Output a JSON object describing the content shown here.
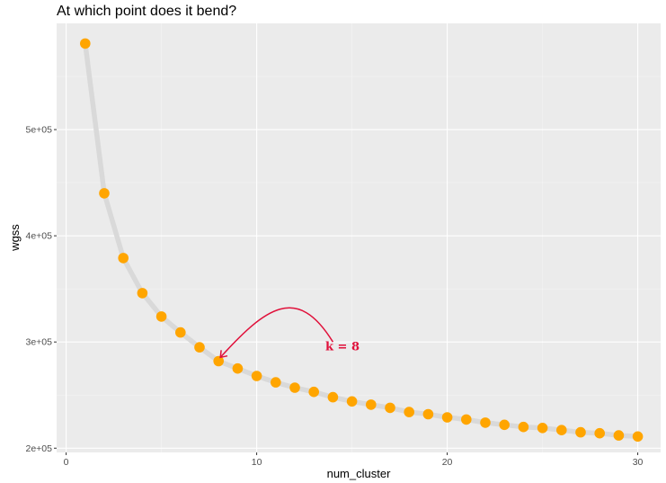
{
  "chart_data": {
    "type": "line",
    "title": "At which point does it bend?",
    "xlabel": "num_cluster",
    "ylabel": "wgss",
    "xlim": [
      -0.5,
      31.2
    ],
    "ylim": [
      196000,
      600000
    ],
    "x_ticks": [
      0,
      10,
      20,
      30
    ],
    "x_tick_labels": [
      "0",
      "10",
      "20",
      "30"
    ],
    "y_ticks": [
      200000,
      300000,
      400000,
      500000
    ],
    "y_tick_labels": [
      "2e+05",
      "3e+05",
      "4e+05",
      "5e+05"
    ],
    "grid": true,
    "line_color": "#d9d9d9",
    "point_color": "#ffa500",
    "background_color": "#ebebeb",
    "series": [
      {
        "x": [
          1,
          2,
          3,
          4,
          5,
          6,
          7,
          8,
          9,
          10,
          11,
          12,
          13,
          14,
          15,
          16,
          17,
          18,
          19,
          20,
          21,
          22,
          23,
          24,
          25,
          26,
          27,
          28,
          29,
          30
        ],
        "values": [
          581000,
          440000,
          379000,
          346000,
          324000,
          309000,
          295000,
          282000,
          275000,
          268000,
          262000,
          257000,
          253000,
          248000,
          244000,
          241000,
          238000,
          234000,
          232000,
          229000,
          227000,
          224000,
          222000,
          220000,
          219000,
          217000,
          215000,
          214000,
          212000,
          211000
        ]
      }
    ],
    "annotation": {
      "text": "k = 8",
      "color": "#e0103a",
      "arrow_to": [
        8,
        283000
      ],
      "arrow_from": [
        14,
        300000
      ],
      "text_at": [
        14.5,
        292000
      ]
    }
  }
}
